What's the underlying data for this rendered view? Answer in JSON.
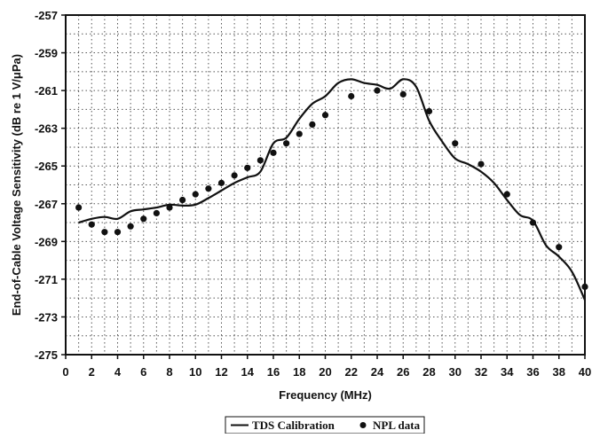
{
  "chart_data": {
    "type": "line",
    "xlabel": "Frequency (MHz)",
    "ylabel": "End-of-Cable Voltage Sensitivity (dB re 1 V/μPa)",
    "xlim": [
      0,
      40
    ],
    "ylim": [
      -275,
      -257
    ],
    "x_ticks": [
      0,
      2,
      4,
      6,
      8,
      10,
      12,
      14,
      16,
      18,
      20,
      22,
      24,
      26,
      28,
      30,
      32,
      34,
      36,
      38,
      40
    ],
    "x_tick_labels": [
      "0",
      "2",
      "4",
      "6",
      "8",
      "10",
      "12",
      "14",
      "16",
      "18",
      "20",
      "22",
      "24",
      "26",
      "28",
      "30",
      "32",
      "34",
      "36",
      "38",
      "40"
    ],
    "y_ticks": [
      -257,
      -259,
      -261,
      -263,
      -265,
      -267,
      -269,
      -271,
      -273,
      -275
    ],
    "y_tick_labels": [
      "-257",
      "-259",
      "-261",
      "-263",
      "-265",
      "-267",
      "-269",
      "-271",
      "-273",
      "-275"
    ],
    "grid": true,
    "legend_position": "bottom-center",
    "series": [
      {
        "name": "TDS Calibration",
        "kind": "line",
        "color": "#111111",
        "x": [
          1,
          2,
          3,
          4,
          5,
          6,
          7,
          8,
          9,
          10,
          11,
          12,
          13,
          14,
          15,
          16,
          17,
          18,
          19,
          20,
          21,
          22,
          23,
          24,
          25,
          26,
          27,
          28,
          29,
          30,
          31,
          32,
          33,
          34,
          35,
          36,
          37,
          38,
          39,
          40
        ],
        "y": [
          -268.0,
          -267.8,
          -267.7,
          -267.8,
          -267.4,
          -267.3,
          -267.2,
          -267.05,
          -267.1,
          -267.05,
          -266.7,
          -266.3,
          -265.9,
          -265.6,
          -265.3,
          -263.8,
          -263.5,
          -262.5,
          -261.7,
          -261.3,
          -260.6,
          -260.4,
          -260.6,
          -260.7,
          -260.9,
          -260.4,
          -260.8,
          -262.6,
          -263.7,
          -264.6,
          -264.9,
          -265.3,
          -265.9,
          -266.8,
          -267.6,
          -267.9,
          -269.2,
          -269.8,
          -270.6,
          -272.1
        ]
      },
      {
        "name": "NPL data",
        "kind": "scatter",
        "color": "#111111",
        "x": [
          1,
          2,
          3,
          4,
          5,
          6,
          7,
          8,
          9,
          10,
          11,
          12,
          13,
          14,
          15,
          16,
          17,
          18,
          19,
          20,
          22,
          24,
          26,
          28,
          30,
          32,
          34,
          36,
          38,
          40
        ],
        "y": [
          -267.2,
          -268.1,
          -268.5,
          -268.5,
          -268.2,
          -267.8,
          -267.5,
          -267.2,
          -266.8,
          -266.5,
          -266.2,
          -265.9,
          -265.5,
          -265.1,
          -264.7,
          -264.3,
          -263.8,
          -263.3,
          -262.8,
          -262.3,
          -261.3,
          -261.0,
          -261.2,
          -262.1,
          -263.8,
          -264.9,
          -266.5,
          -268.0,
          -269.3,
          -271.4
        ]
      }
    ]
  }
}
